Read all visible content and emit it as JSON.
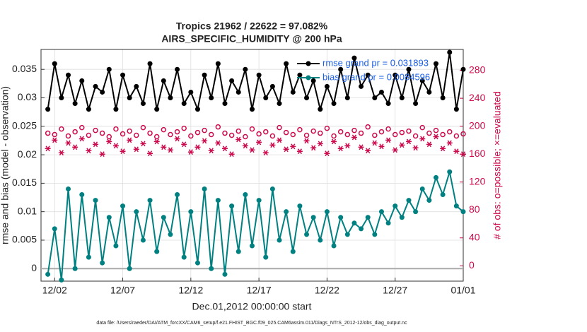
{
  "chart_data": {
    "type": "line",
    "title": "Tropics 21962 / 22622 = 97.082%",
    "subtitle": "AIRS_SPECIFIC_HUMIDITY @ 200 hPa",
    "xlabel": "Dec.01,2012 00:00:00 start",
    "ylabel": "rmse and bias (model - observation)",
    "y2label": "# of obs: o=possible; ×=evaluated",
    "footnote": "data file: /Users/raeder/DAI/ATM_forcXX/CAM6_setup/f.e21.FHIST_BGC.f09_025.CAM6assim.011/Diags_NTrS_2012-12/obs_diag_output.nc",
    "x": [
      0.5,
      1,
      1.5,
      2,
      2.5,
      3,
      3.5,
      4,
      4.5,
      5,
      5.5,
      6,
      6.5,
      7,
      7.5,
      8,
      8.5,
      9,
      9.5,
      10,
      10.5,
      11,
      11.5,
      12,
      12.5,
      13,
      13.5,
      14,
      14.5,
      15,
      15.5,
      16,
      16.5,
      17,
      17.5,
      18,
      18.5,
      19,
      19.5,
      20,
      20.5,
      21,
      21.5,
      22,
      22.5,
      23,
      23.5,
      24,
      24.5,
      25,
      25.5,
      26,
      26.5,
      27,
      27.5,
      28,
      28.5,
      29,
      29.5,
      30,
      30.5,
      31
    ],
    "xlim": [
      0,
      31
    ],
    "xticks": [
      {
        "value": 1,
        "label": "12/02"
      },
      {
        "value": 6,
        "label": "12/07"
      },
      {
        "value": 11,
        "label": "12/12"
      },
      {
        "value": 16,
        "label": "12/17"
      },
      {
        "value": 21,
        "label": "12/22"
      },
      {
        "value": 26,
        "label": "12/27"
      },
      {
        "value": 31,
        "label": "01/01"
      }
    ],
    "ylim": [
      -0.0022,
      0.0385
    ],
    "yticks": [
      0,
      0.005,
      0.01,
      0.015,
      0.02,
      0.025,
      0.03,
      0.035
    ],
    "y2lim": [
      -22,
      310
    ],
    "y2ticks": [
      0,
      40,
      80,
      120,
      160,
      200,
      240,
      280
    ],
    "grid": true,
    "legend": "upper right",
    "series": [
      {
        "name": "rmse grand pr = 0.031893",
        "color": "#000000",
        "marker": "dot",
        "values": [
          0.028,
          0.036,
          0.03,
          0.034,
          0.029,
          0.033,
          0.028,
          0.032,
          0.031,
          0.035,
          0.028,
          0.034,
          0.03,
          0.032,
          0.029,
          0.036,
          0.028,
          0.033,
          0.03,
          0.035,
          0.029,
          0.031,
          0.028,
          0.034,
          0.03,
          0.036,
          0.029,
          0.033,
          0.031,
          0.035,
          0.028,
          0.034,
          0.03,
          0.032,
          0.029,
          0.036,
          0.031,
          0.034,
          0.03,
          0.033,
          0.028,
          0.032,
          0.029,
          0.035,
          0.03,
          0.037,
          0.032,
          0.034,
          0.03,
          0.031,
          0.029,
          0.034,
          0.03,
          0.035,
          0.029,
          0.033,
          0.031,
          0.036,
          0.03,
          0.038,
          0.028,
          0.035
        ]
      },
      {
        "name": "bias grand pr = 0.0084596",
        "color": "#008080",
        "marker": "dot",
        "values": [
          -0.001,
          0.007,
          -0.002,
          0.014,
          0.0,
          0.013,
          0.002,
          0.012,
          0.001,
          0.009,
          0.004,
          0.011,
          0.0,
          0.01,
          0.005,
          0.012,
          0.003,
          0.009,
          0.006,
          0.013,
          0.002,
          0.01,
          0.001,
          0.014,
          0.0,
          0.012,
          -0.001,
          0.011,
          0.003,
          0.013,
          0.004,
          0.012,
          0.002,
          0.014,
          0.005,
          0.01,
          0.003,
          0.011,
          0.006,
          0.009,
          0.005,
          0.01,
          0.004,
          0.009,
          0.006,
          0.008,
          0.007,
          0.009,
          0.006,
          0.01,
          0.008,
          0.011,
          0.009,
          0.012,
          0.01,
          0.014,
          0.012,
          0.016,
          0.013,
          0.017,
          0.011,
          0.01
        ]
      },
      {
        "color": "#cc0a4e",
        "marker": "circle",
        "axis": "y2",
        "values": [
          190,
          188,
          196,
          186,
          192,
          198,
          187,
          194,
          190,
          185,
          196,
          189,
          193,
          187,
          198,
          190,
          185,
          195,
          188,
          192,
          197,
          186,
          191,
          194,
          188,
          199,
          190,
          187,
          193,
          185,
          196,
          189,
          192,
          186,
          198,
          191,
          188,
          195,
          187,
          193,
          190,
          197,
          186,
          192,
          188,
          194,
          190,
          199,
          187,
          192,
          196,
          188,
          191,
          193,
          186,
          198,
          190,
          194,
          188,
          192,
          186,
          189
        ]
      },
      {
        "color": "#cc0a4e",
        "marker": "star",
        "axis": "y2",
        "values": [
          168,
          180,
          162,
          176,
          170,
          182,
          165,
          174,
          160,
          178,
          172,
          164,
          180,
          167,
          175,
          161,
          178,
          170,
          166,
          182,
          174,
          163,
          170,
          179,
          165,
          176,
          168,
          160,
          181,
          172,
          166,
          177,
          162,
          173,
          180,
          167,
          171,
          164,
          179,
          169,
          175,
          161,
          178,
          168,
          172,
          184,
          170,
          165,
          176,
          171,
          180,
          166,
          173,
          178,
          169,
          182,
          174,
          185,
          168,
          176,
          164,
          160
        ]
      }
    ]
  }
}
